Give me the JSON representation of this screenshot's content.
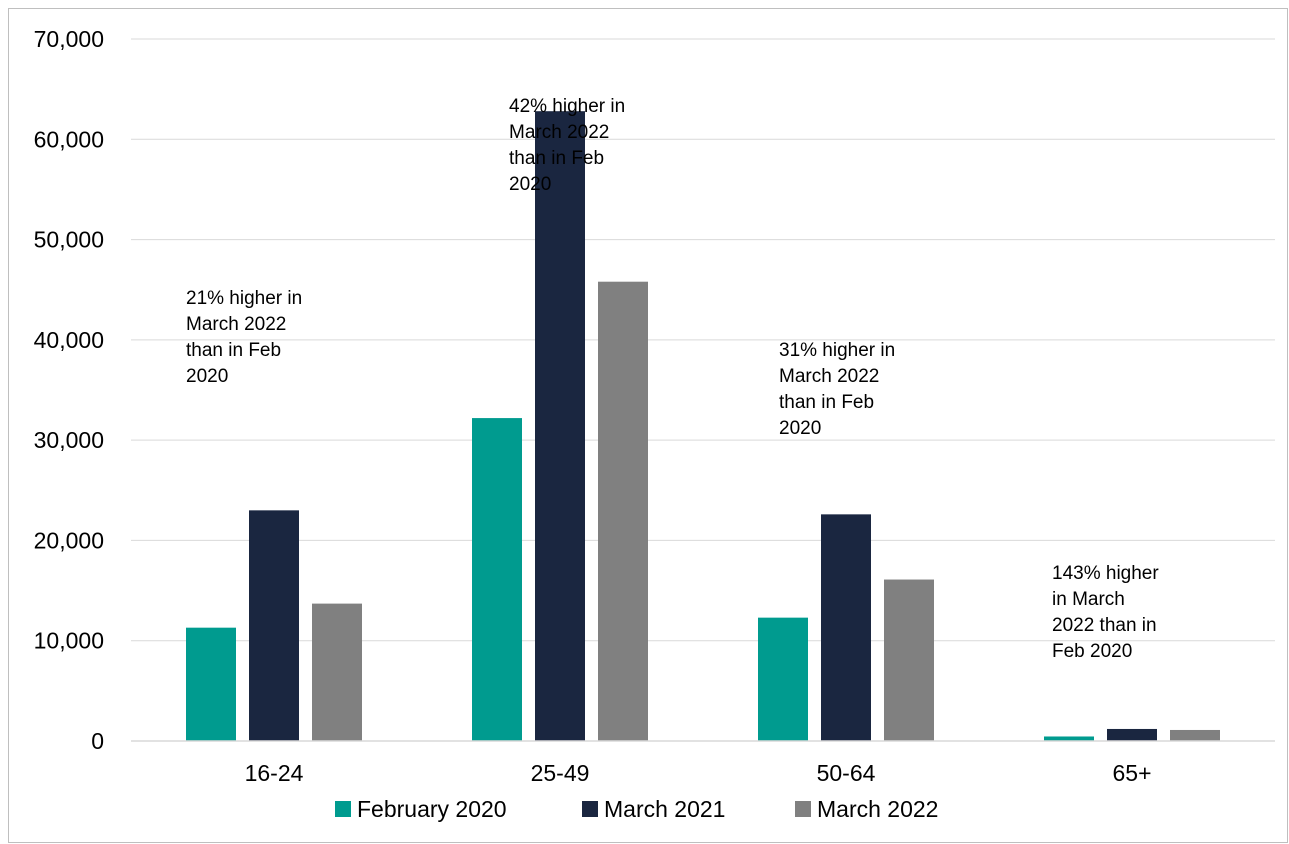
{
  "chart_data": {
    "type": "bar",
    "title": "",
    "xlabel": "",
    "ylabel": "",
    "ylim": [
      0,
      70000
    ],
    "yticks": [
      0,
      10000,
      20000,
      30000,
      40000,
      50000,
      60000,
      70000
    ],
    "ytick_labels": [
      "0",
      "10,000",
      "20,000",
      "30,000",
      "40,000",
      "50,000",
      "60,000",
      "70,000"
    ],
    "grid": "horizontal",
    "legend_position": "bottom",
    "categories": [
      "16-24",
      "25-49",
      "50-64",
      "65+"
    ],
    "series": [
      {
        "name": "February 2020",
        "color": "#009b8f",
        "values": [
          11300,
          32200,
          12300,
          450
        ]
      },
      {
        "name": "March 2021",
        "color": "#1a2640",
        "values": [
          23000,
          62800,
          22600,
          1200
        ]
      },
      {
        "name": "March 2022",
        "color": "#808080",
        "values": [
          13700,
          45800,
          16100,
          1100
        ]
      }
    ],
    "annotations": [
      {
        "category": "16-24",
        "lines": [
          "21% higher in",
          "March 2022",
          "than in Feb",
          "2020"
        ]
      },
      {
        "category": "25-49",
        "lines": [
          "42% higher in",
          "March 2022",
          "than in Feb",
          "2020"
        ]
      },
      {
        "category": "50-64",
        "lines": [
          "31% higher in",
          "March 2022",
          "than in Feb",
          "2020"
        ]
      },
      {
        "category": "65+",
        "lines": [
          "143% higher",
          "in March",
          "2022 than in",
          "Feb 2020"
        ]
      }
    ]
  }
}
